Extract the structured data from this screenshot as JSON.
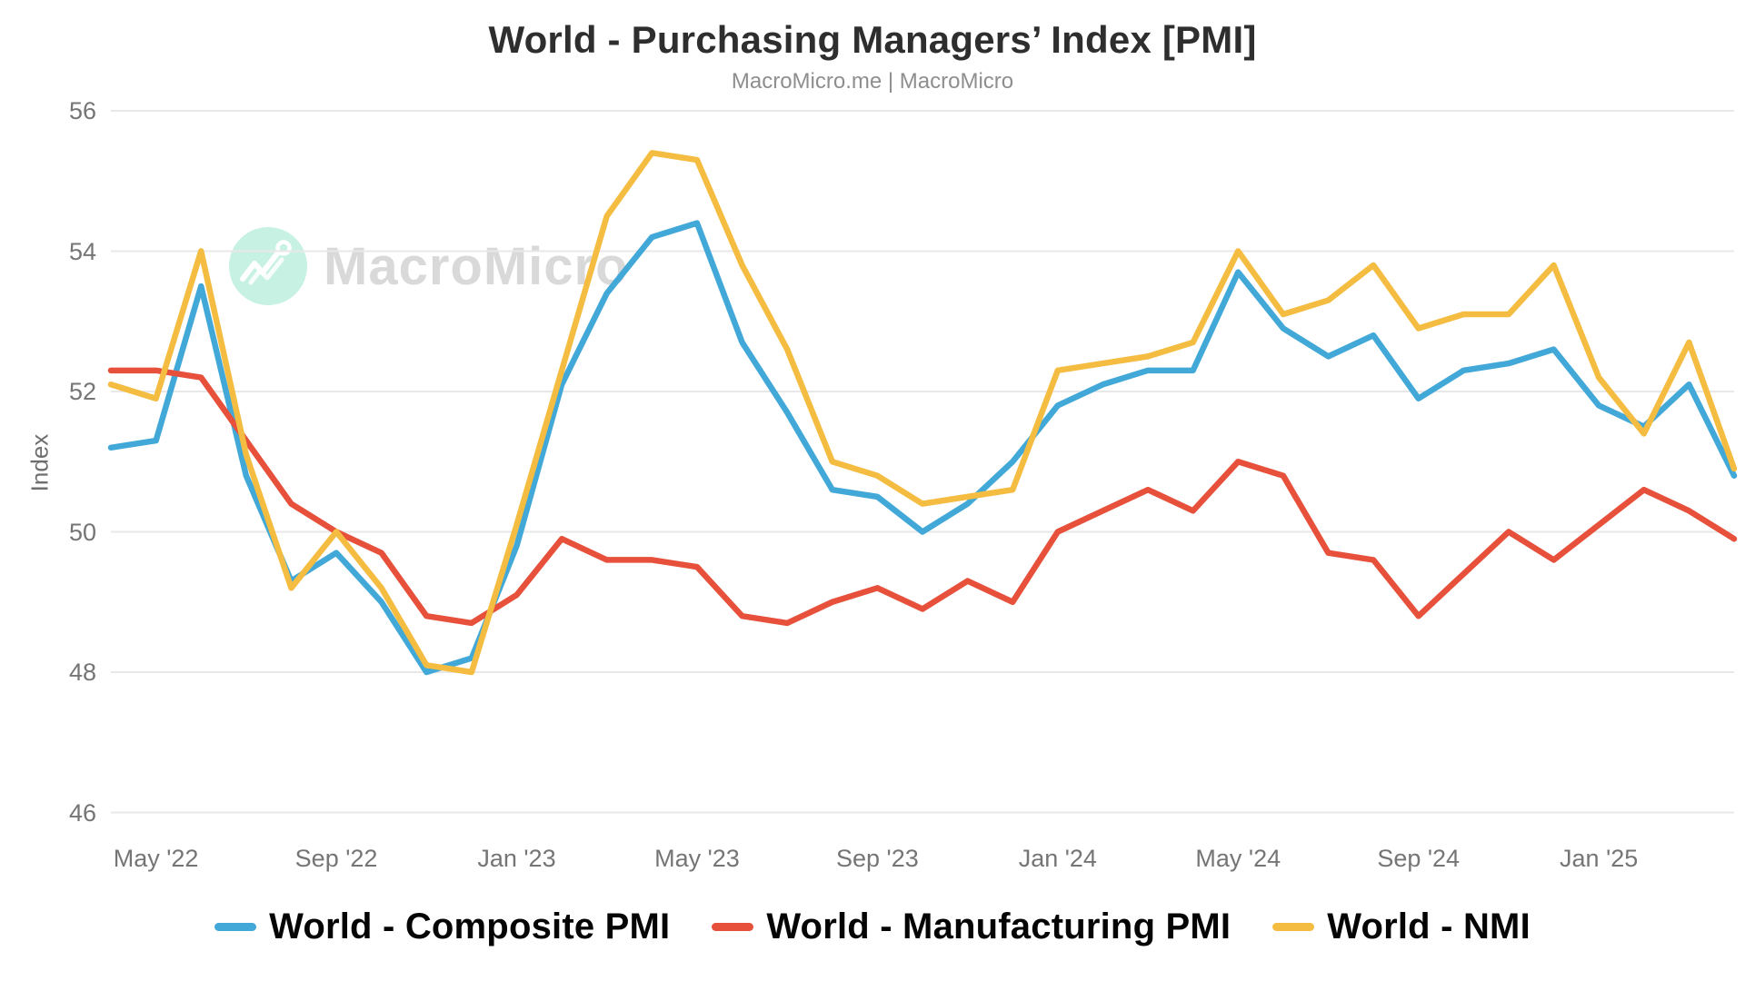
{
  "header": {
    "title": "World - Purchasing Managers’ Index [PMI]",
    "subtitle": "MacroMicro.me | MacroMicro"
  },
  "branding": {
    "watermark_text": "MacroMicro",
    "watermark_circle_color": "#c7f1e2",
    "logo_icon": "zigzag-chart-logo"
  },
  "chart_data": {
    "type": "line",
    "title": "World - Purchasing Managers’ Index [PMI]",
    "subtitle": "MacroMicro.me | MacroMicro",
    "xlabel": "",
    "ylabel": "Index",
    "ylim": [
      46,
      56
    ],
    "y_ticks": [
      56,
      54,
      52,
      50,
      48,
      46
    ],
    "grid": "horizontal-only",
    "legend_position": "bottom",
    "x": [
      "Apr '22",
      "May '22",
      "Jun '22",
      "Jul '22",
      "Aug '22",
      "Sep '22",
      "Oct '22",
      "Nov '22",
      "Dec '22",
      "Jan '23",
      "Feb '23",
      "Mar '23",
      "Apr '23",
      "May '23",
      "Jun '23",
      "Jul '23",
      "Aug '23",
      "Sep '23",
      "Oct '23",
      "Nov '23",
      "Dec '23",
      "Jan '24",
      "Feb '24",
      "Mar '24",
      "Apr '24",
      "May '24",
      "Jun '24",
      "Jul '24",
      "Aug '24",
      "Sep '24",
      "Oct '24",
      "Nov '24",
      "Dec '24",
      "Jan '25",
      "Feb '25",
      "Mar '25",
      "Apr '25"
    ],
    "x_tick_labels": [
      {
        "index": 1,
        "label": "May '22"
      },
      {
        "index": 5,
        "label": "Sep '22"
      },
      {
        "index": 9,
        "label": "Jan '23"
      },
      {
        "index": 13,
        "label": "May '23"
      },
      {
        "index": 17,
        "label": "Sep '23"
      },
      {
        "index": 21,
        "label": "Jan '24"
      },
      {
        "index": 25,
        "label": "May '24"
      },
      {
        "index": 29,
        "label": "Sep '24"
      },
      {
        "index": 33,
        "label": "Jan '25"
      }
    ],
    "series": [
      {
        "name": "World - Composite PMI",
        "color": "#41a8d8",
        "values": [
          51.2,
          51.3,
          53.5,
          50.8,
          49.3,
          49.7,
          49.0,
          48.0,
          48.2,
          49.8,
          52.1,
          53.4,
          54.2,
          54.4,
          52.7,
          51.7,
          50.6,
          50.5,
          50.0,
          50.4,
          51.0,
          51.8,
          52.1,
          52.3,
          52.3,
          53.7,
          52.9,
          52.5,
          52.8,
          51.9,
          52.3,
          52.4,
          52.6,
          51.8,
          51.5,
          52.1,
          50.8
        ]
      },
      {
        "name": "World - Manufacturing PMI",
        "color": "#e7503a",
        "values": [
          52.3,
          52.3,
          52.2,
          51.3,
          50.4,
          50.0,
          49.7,
          48.8,
          48.7,
          49.1,
          49.9,
          49.6,
          49.6,
          49.5,
          48.8,
          48.7,
          49.0,
          49.2,
          48.9,
          49.3,
          49.0,
          50.0,
          50.3,
          50.6,
          50.3,
          51.0,
          50.8,
          49.7,
          49.6,
          48.8,
          49.4,
          50.0,
          49.6,
          50.1,
          50.6,
          50.3,
          49.9
        ]
      },
      {
        "name": "World - NMI",
        "color": "#f4bd41",
        "values": [
          52.1,
          51.9,
          54.0,
          51.1,
          49.2,
          50.0,
          49.2,
          48.1,
          48.0,
          50.1,
          52.3,
          54.5,
          55.4,
          55.3,
          53.8,
          52.6,
          51.0,
          50.8,
          50.4,
          50.5,
          50.6,
          52.3,
          52.4,
          52.5,
          52.7,
          54.0,
          53.1,
          53.3,
          53.8,
          52.9,
          53.1,
          53.1,
          53.8,
          52.2,
          51.4,
          52.7,
          50.9
        ]
      }
    ]
  },
  "legend": {
    "items": [
      {
        "label": "World - Composite PMI"
      },
      {
        "label": "World - Manufacturing PMI"
      },
      {
        "label": "World - NMI"
      }
    ]
  }
}
